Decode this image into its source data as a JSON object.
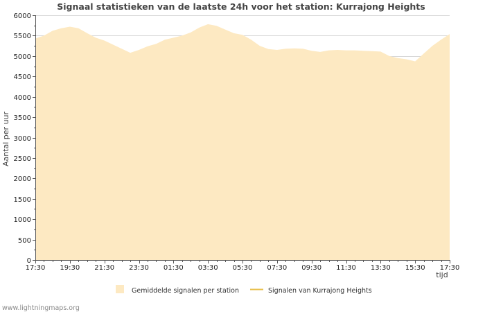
{
  "chart_data": {
    "type": "area",
    "title": "Signaal statistieken van de laatste 24h voor het station: Kurrajong Heights",
    "xlabel": "tijd",
    "ylabel": "Aantal per uur",
    "ylim": [
      0,
      6000
    ],
    "y_ticks": [
      "0",
      "500",
      "1000",
      "1500",
      "2000",
      "2500",
      "3000",
      "3500",
      "4000",
      "4500",
      "5000",
      "5500",
      "6000"
    ],
    "x_ticks": [
      "17:30",
      "19:30",
      "21:30",
      "23:30",
      "01:30",
      "03:30",
      "05:30",
      "07:30",
      "09:30",
      "11:30",
      "13:30",
      "15:30",
      "17:30"
    ],
    "x_range_hours": [
      0,
      24
    ],
    "grid": true,
    "series": [
      {
        "name": "Gemiddelde signalen per station",
        "style": "area",
        "color": "#fde9c2",
        "x_hours": [
          0,
          0.5,
          1,
          1.5,
          2,
          2.5,
          3,
          3.5,
          4,
          4.5,
          5,
          5.5,
          6,
          6.5,
          7,
          7.5,
          8,
          8.5,
          9,
          9.5,
          10,
          10.5,
          11,
          11.5,
          12,
          12.5,
          13,
          13.5,
          14,
          14.5,
          15,
          15.5,
          16,
          16.5,
          17,
          17.5,
          18,
          18.5,
          19,
          19.5,
          20,
          20.5,
          21,
          21.5,
          22,
          22.5,
          23,
          23.5,
          24
        ],
        "values": [
          5430,
          5500,
          5620,
          5680,
          5720,
          5680,
          5560,
          5450,
          5380,
          5280,
          5180,
          5080,
          5150,
          5240,
          5300,
          5400,
          5450,
          5500,
          5580,
          5700,
          5780,
          5740,
          5650,
          5560,
          5520,
          5400,
          5250,
          5170,
          5150,
          5180,
          5190,
          5180,
          5130,
          5100,
          5140,
          5150,
          5140,
          5140,
          5130,
          5120,
          5110,
          5000,
          4950,
          4920,
          4870,
          5060,
          5250,
          5400,
          5540
        ]
      },
      {
        "name": "Signalen van Kurrajong Heights",
        "style": "line",
        "color": "#e8c14e",
        "x_hours": [],
        "values": []
      }
    ],
    "legend_position": "bottom"
  },
  "footer": {
    "credit": "www.lightningmaps.org"
  }
}
